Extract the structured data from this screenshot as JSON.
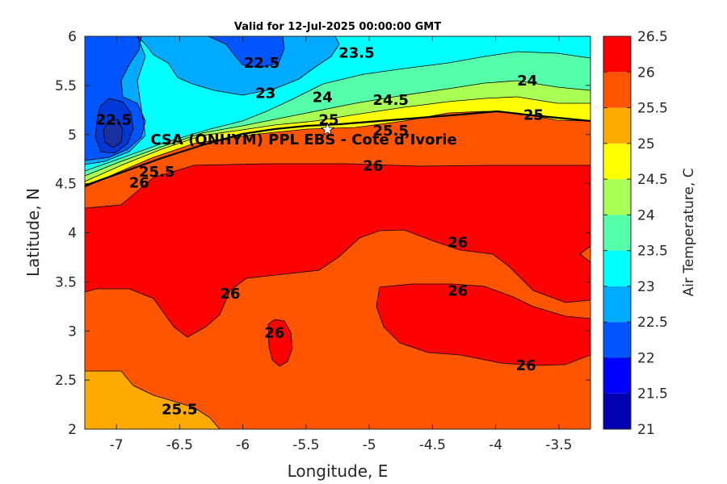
{
  "chart_data": {
    "type": "contour",
    "title": "Valid for 12-Jul-2025 00:00:00 GMT",
    "xlabel": "Longitude, E",
    "ylabel": "Latitude, N",
    "colorbar_label": "Air Temperature, C",
    "xlim": [
      -7.25,
      -3.25
    ],
    "ylim": [
      2,
      6
    ],
    "xticks": [
      "-7",
      "-6.5",
      "-6",
      "-5.5",
      "-5",
      "-4.5",
      "-4",
      "-3.5"
    ],
    "yticks": [
      "6",
      "5.5",
      "5",
      "4.5",
      "4",
      "3.5",
      "3",
      "2.5",
      "2"
    ],
    "colorbar": {
      "range": [
        21,
        26.5
      ],
      "ticks": [
        "26.5",
        "26",
        "25.5",
        "25",
        "24.5",
        "24",
        "23.5",
        "23",
        "22.5",
        "22",
        "21.5",
        "21"
      ],
      "levels": [
        {
          "from": 21.0,
          "to": 21.5,
          "color": "#0000b0"
        },
        {
          "from": 21.5,
          "to": 22.0,
          "color": "#0000ff"
        },
        {
          "from": 22.0,
          "to": 22.5,
          "color": "#0055ff"
        },
        {
          "from": 22.5,
          "to": 23.0,
          "color": "#00aaff"
        },
        {
          "from": 23.0,
          "to": 23.5,
          "color": "#00ffff"
        },
        {
          "from": 23.5,
          "to": 24.0,
          "color": "#55ffaa"
        },
        {
          "from": 24.0,
          "to": 24.5,
          "color": "#aaff55"
        },
        {
          "from": 24.5,
          "to": 25.0,
          "color": "#ffff00"
        },
        {
          "from": 25.0,
          "to": 25.5,
          "color": "#ffaa00"
        },
        {
          "from": 25.5,
          "to": 26.0,
          "color": "#ff5500"
        },
        {
          "from": 26.0,
          "to": 26.5,
          "color": "#ff0000"
        }
      ]
    },
    "contour_labels": [
      {
        "text": "22.5",
        "lon": -5.85,
        "lat": 5.73
      },
      {
        "text": "23.5",
        "lon": -5.1,
        "lat": 5.83
      },
      {
        "text": "24",
        "lon": -3.75,
        "lat": 5.55
      },
      {
        "text": "23",
        "lon": -5.82,
        "lat": 5.42
      },
      {
        "text": "24",
        "lon": -5.37,
        "lat": 5.38
      },
      {
        "text": "24.5",
        "lon": -4.83,
        "lat": 5.35
      },
      {
        "text": "25",
        "lon": -3.7,
        "lat": 5.2
      },
      {
        "text": "25",
        "lon": -5.32,
        "lat": 5.15
      },
      {
        "text": "25.5",
        "lon": -4.83,
        "lat": 5.04
      },
      {
        "text": "26",
        "lon": -4.97,
        "lat": 4.68
      },
      {
        "text": "22.5",
        "lon": -7.02,
        "lat": 5.15
      },
      {
        "text": "26",
        "lon": -6.82,
        "lat": 4.51
      },
      {
        "text": "25.5",
        "lon": -6.68,
        "lat": 4.62
      },
      {
        "text": "26",
        "lon": -4.3,
        "lat": 3.9
      },
      {
        "text": "26",
        "lon": -6.1,
        "lat": 3.38
      },
      {
        "text": "26",
        "lon": -4.3,
        "lat": 3.41
      },
      {
        "text": "26",
        "lon": -5.75,
        "lat": 2.98
      },
      {
        "text": "26",
        "lon": -3.76,
        "lat": 2.65
      },
      {
        "text": "25.5",
        "lon": -6.5,
        "lat": 2.2
      }
    ],
    "annotations": [
      {
        "text": "CSA (ONHYM) PPL EBS - Cote d’Ivorie",
        "lon": -6.73,
        "lat": 4.95
      }
    ],
    "markers": [
      {
        "type": "star",
        "lon": -5.33,
        "lat": 5.05
      }
    ]
  }
}
